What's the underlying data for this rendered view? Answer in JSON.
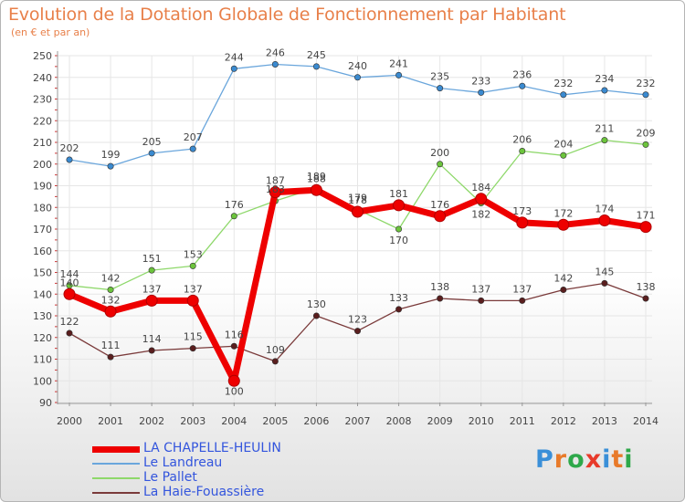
{
  "title": "Evolution de la Dotation Globale de Fonctionnement par Habitant",
  "subtitle": "(en € et par an)",
  "brand": {
    "letters": [
      "P",
      "r",
      "o",
      "x",
      "i",
      "t",
      "i"
    ],
    "colors": [
      "#3a8fd8",
      "#e87a2a",
      "#2ea84a",
      "#e83a2a",
      "#3a8fd8",
      "#e87a2a",
      "#2ea84a"
    ]
  },
  "chart_data": {
    "type": "line",
    "title": "Evolution de la Dotation Globale de Fonctionnement par Habitant",
    "ylabel": "(en € et par an)",
    "xlabel": "",
    "x": [
      "2000",
      "2001",
      "2002",
      "2003",
      "2004",
      "2005",
      "2006",
      "2007",
      "2008",
      "2009",
      "2010",
      "2011",
      "2012",
      "2013",
      "2014"
    ],
    "ylim": [
      90,
      250
    ],
    "yticks": [
      90,
      100,
      110,
      120,
      130,
      140,
      150,
      160,
      170,
      180,
      190,
      200,
      210,
      220,
      230,
      240,
      250
    ],
    "grid": true,
    "series": [
      {
        "name": "Le Landreau",
        "color": "#6aa6dc",
        "marker": "#3a8ad0",
        "values": [
          202,
          199,
          205,
          207,
          244,
          246,
          245,
          240,
          241,
          235,
          233,
          236,
          232,
          234,
          232
        ]
      },
      {
        "name": "Le Pallet",
        "color": "#8ed86a",
        "marker": "#6cc43c",
        "values": [
          144,
          142,
          151,
          153,
          176,
          183,
          189,
          179,
          170,
          200,
          182,
          206,
          204,
          211,
          209
        ]
      },
      {
        "name": "La Haie-Fouassière",
        "color": "#7a3a3a",
        "marker": "#5a1e1e",
        "values": [
          122,
          111,
          114,
          115,
          116,
          109,
          130,
          123,
          133,
          138,
          137,
          137,
          142,
          145,
          138
        ]
      },
      {
        "name": "LA CHAPELLE-HEULIN",
        "color": "#ee0000",
        "marker": "#ee0000",
        "bold": true,
        "values": [
          140,
          132,
          137,
          137,
          100,
          187,
          188,
          178,
          181,
          176,
          184,
          173,
          172,
          174,
          171
        ]
      }
    ],
    "legend": [
      "LA CHAPELLE-HEULIN",
      "Le Landreau",
      "Le Pallet",
      "La Haie-Fouassière"
    ]
  }
}
